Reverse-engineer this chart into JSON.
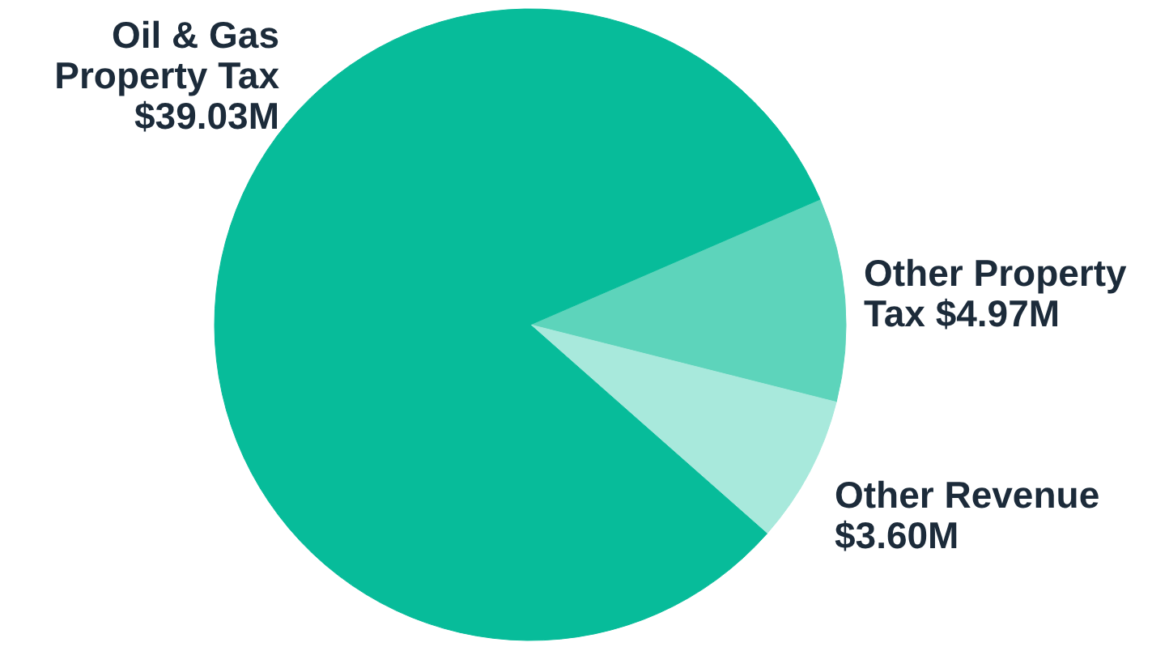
{
  "chart_data": {
    "type": "pie",
    "categories": [
      "Other Property Tax",
      "Other Revenue",
      "Oil & Gas Property Tax"
    ],
    "values": [
      4.97,
      3.6,
      39.03
    ],
    "value_labels": [
      "$4.97M",
      "$3.60M",
      "$39.03M"
    ],
    "colors": [
      "#5dd4bb",
      "#a8e9dc",
      "#07bc9a"
    ]
  }
}
